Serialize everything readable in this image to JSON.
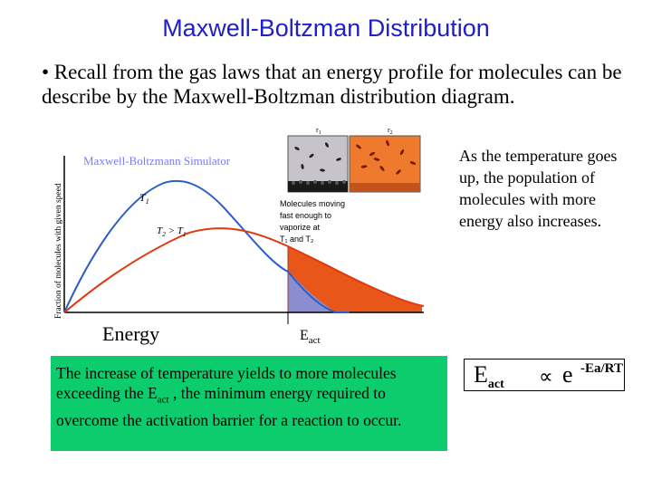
{
  "slide": {
    "title": "Maxwell-Boltzman Distribution",
    "bullet": "• Recall from the gas laws that an energy profile for molecules can be describe by the Maxwell-Boltzman distribution diagram.",
    "side_note": "As the temperature goes up, the population of molecules with more energy also increases.",
    "energy_label": "Energy",
    "eact_main": "E",
    "eact_sub": "act"
  },
  "figure": {
    "y_axis_label": "Fraction of molecules with given speed",
    "simulator_label": "Maxwell-Boltzmann Simulator",
    "t1_label": "T",
    "t1_sub": "1",
    "t2_label": "T",
    "t2_sub": "2",
    "t2_rel": " > T",
    "t2_rel_sub": "1",
    "box_label_1": "r",
    "box_label_1_sub": "1",
    "box_label_2": "r",
    "box_label_2_sub": "2",
    "note_lines": [
      "Molecules moving",
      "fast enough to",
      "vaporize at",
      "T₁ and T₂"
    ],
    "colors": {
      "t1_curve": "#2b5fc8",
      "t2_curve": "#e03a12",
      "shaded_t2": "#e8561a",
      "shaded_t1": "#8a8ed0",
      "green": "#0ccc6e"
    }
  },
  "green_box": {
    "text_a": "The increase of temperature yields to more molecules exceeding the E",
    "text_sub": "act",
    "text_b": " , the minimum energy required to overcome the activation barrier for a reaction to occur."
  },
  "formula": {
    "e_main": "E",
    "e_sub": "act",
    "proportional": "∝",
    "base": "e",
    "exponent": "-Ea/RT"
  }
}
